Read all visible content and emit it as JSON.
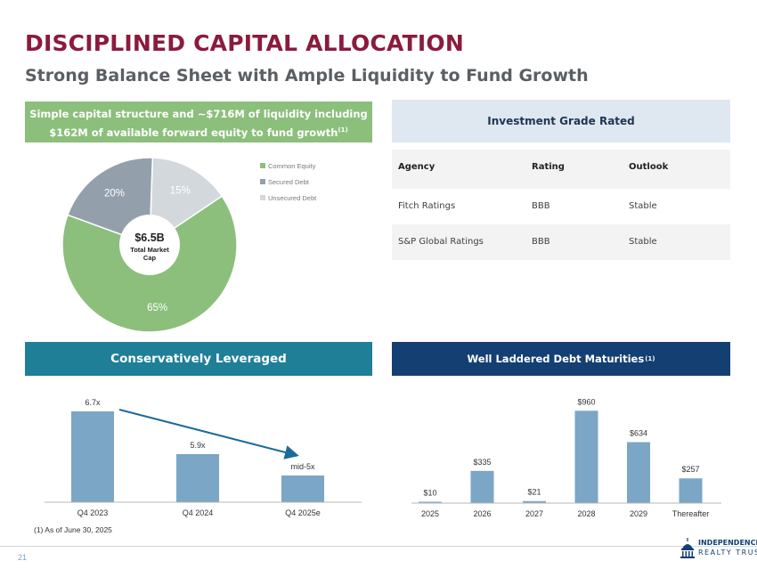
{
  "header": {
    "title": "DISCIPLINED CAPITAL ALLOCATION",
    "subtitle": "Strong Balance Sheet with Ample Liquidity to Fund Growth"
  },
  "capital_structure": {
    "banner_line1": "Simple capital structure and ~$716M of liquidity including",
    "banner_line2": "$162M of available forward equity to fund growth",
    "banner_sup": "(1)",
    "center_value": "$6.5B",
    "center_label_line1": "Total Market",
    "center_label_line2": "Cap",
    "colors": {
      "common_equity": "#8bbf7b",
      "secured_debt": "#949fac",
      "unsecured_debt": "#d3d8dc"
    }
  },
  "ratings": {
    "header": "Investment Grade Rated",
    "columns": [
      "Agency",
      "Rating",
      "Outlook"
    ],
    "rows": [
      [
        "Fitch Ratings",
        "BBB",
        "Stable"
      ],
      [
        "S&P Global Ratings",
        "BBB",
        "Stable"
      ]
    ]
  },
  "leverage": {
    "banner": "Conservatively Leveraged",
    "color": "#7ba6c6",
    "arrow_color": "#1a6b9c"
  },
  "maturities": {
    "banner": "Well Laddered Debt Maturities",
    "banner_sup": "(1)",
    "color": "#7ba6c6"
  },
  "footnote": "(1) As of June 30, 2025",
  "page_number": "21",
  "logo": {
    "line1": "INDEPENDENCE",
    "line2": "REALTY TRUST",
    "icon": "capitol-dome-icon"
  },
  "chart_data": [
    {
      "type": "pie",
      "categories": [
        "Common Equity",
        "Secured Debt",
        "Unsecured Debt"
      ],
      "values": [
        65,
        20,
        15
      ],
      "labels": [
        "65%",
        "20%",
        "15%"
      ],
      "legend_position": "right"
    },
    {
      "type": "bar",
      "categories": [
        "Q4 2023",
        "Q4 2024",
        "Q4 2025e"
      ],
      "values": [
        6.7,
        5.9,
        5.5
      ],
      "data_labels": [
        "6.7x",
        "5.9x",
        "mid-5x"
      ],
      "ylim": [
        5,
        6.8
      ],
      "grid": false
    },
    {
      "type": "bar",
      "categories": [
        "2025",
        "2026",
        "2027",
        "2028",
        "2029",
        "Thereafter"
      ],
      "values": [
        10,
        335,
        21,
        960,
        634,
        257
      ],
      "data_labels": [
        "$10",
        "$335",
        "$21",
        "$960",
        "$634",
        "$257"
      ],
      "ylim": [
        0,
        1000
      ],
      "grid": false
    }
  ]
}
